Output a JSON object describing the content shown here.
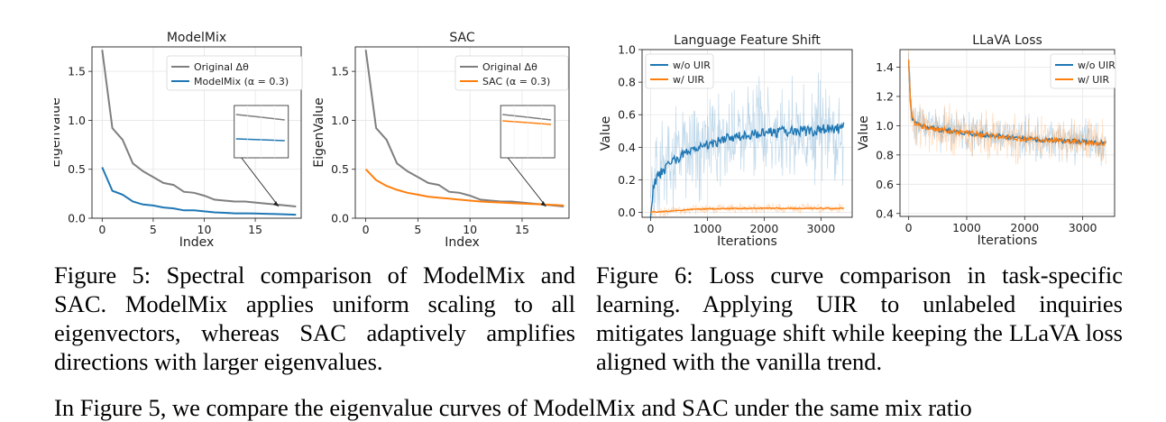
{
  "figure5": {
    "caption_label": "Figure 5:",
    "caption_text": "Spectral comparison of ModelMix and SAC. ModelMix applies uniform scaling to all eigenvectors, whereas SAC adaptively amplifies directions with larger eigenvalues."
  },
  "figure6": {
    "caption_label": "Figure 6:",
    "caption_text": "Loss curve comparison in task-specific learning. Applying UIR to unlabeled inquiries mitigates language shift while keeping the LLaVA loss aligned with the vanilla trend."
  },
  "body_text": "In Figure 5, we compare the eigenvalue curves of ModelMix and SAC under the same mix ratio",
  "colors": {
    "blue": "#1f77b4",
    "orange": "#ff7f0e",
    "gray": "#7f7f7f"
  },
  "chart_data": [
    {
      "type": "line",
      "title": "ModelMix",
      "xlabel": "Index",
      "ylabel": "EigenValue",
      "xlim": [
        -1,
        19.5
      ],
      "ylim": [
        0,
        1.75
      ],
      "xticks": [
        0,
        5,
        10,
        15
      ],
      "yticks": [
        0.0,
        0.5,
        1.0,
        1.5
      ],
      "grid": true,
      "legend": "upper right",
      "inset_zoom": true,
      "series": [
        {
          "name": "Original Δθ",
          "color": "#7f7f7f",
          "x": [
            0,
            1,
            2,
            3,
            4,
            5,
            6,
            7,
            8,
            9,
            10,
            11,
            12,
            13,
            14,
            15,
            16,
            17,
            18,
            19
          ],
          "values": [
            1.72,
            0.92,
            0.8,
            0.56,
            0.48,
            0.42,
            0.36,
            0.34,
            0.27,
            0.26,
            0.23,
            0.19,
            0.18,
            0.17,
            0.17,
            0.16,
            0.15,
            0.14,
            0.13,
            0.12
          ]
        },
        {
          "name": "ModelMix (α = 0.3)",
          "color": "#1f77b4",
          "x": [
            0,
            1,
            2,
            3,
            4,
            5,
            6,
            7,
            8,
            9,
            10,
            11,
            12,
            13,
            14,
            15,
            16,
            17,
            18,
            19
          ],
          "values": [
            0.52,
            0.28,
            0.24,
            0.17,
            0.14,
            0.13,
            0.11,
            0.1,
            0.08,
            0.08,
            0.07,
            0.06,
            0.055,
            0.05,
            0.05,
            0.048,
            0.045,
            0.042,
            0.04,
            0.036
          ]
        }
      ]
    },
    {
      "type": "line",
      "title": "SAC",
      "xlabel": "Index",
      "ylabel": "EigenValue",
      "xlim": [
        -1,
        19.5
      ],
      "ylim": [
        0,
        1.75
      ],
      "xticks": [
        0,
        5,
        10,
        15
      ],
      "yticks": [
        0.0,
        0.5,
        1.0,
        1.5
      ],
      "grid": true,
      "legend": "upper right",
      "inset_zoom": true,
      "series": [
        {
          "name": "Original Δθ",
          "color": "#7f7f7f",
          "x": [
            0,
            1,
            2,
            3,
            4,
            5,
            6,
            7,
            8,
            9,
            10,
            11,
            12,
            13,
            14,
            15,
            16,
            17,
            18,
            19
          ],
          "values": [
            1.72,
            0.92,
            0.8,
            0.56,
            0.48,
            0.42,
            0.36,
            0.34,
            0.27,
            0.26,
            0.23,
            0.19,
            0.18,
            0.17,
            0.17,
            0.16,
            0.15,
            0.14,
            0.13,
            0.12
          ]
        },
        {
          "name": "SAC (α = 0.3)",
          "color": "#ff7f0e",
          "x": [
            0,
            1,
            2,
            3,
            4,
            5,
            6,
            7,
            8,
            9,
            10,
            11,
            12,
            13,
            14,
            15,
            16,
            17,
            18,
            19
          ],
          "values": [
            0.5,
            0.39,
            0.33,
            0.29,
            0.26,
            0.24,
            0.22,
            0.21,
            0.2,
            0.19,
            0.18,
            0.17,
            0.165,
            0.16,
            0.155,
            0.15,
            0.145,
            0.14,
            0.135,
            0.13
          ]
        }
      ]
    },
    {
      "type": "line",
      "title": "Language Feature Shift",
      "xlabel": "Iterations",
      "ylabel": "Value",
      "xlim": [
        -150,
        3550
      ],
      "ylim": [
        -0.03,
        1.0
      ],
      "xticks": [
        0,
        1000,
        2000,
        3000
      ],
      "yticks": [
        0.0,
        0.2,
        0.4,
        0.6,
        0.8,
        1.0
      ],
      "grid": true,
      "legend": "upper left",
      "series": [
        {
          "name": "w/o UIR",
          "color": "#1f77b4",
          "x": [
            0,
            50,
            100,
            200,
            300,
            400,
            500,
            600,
            700,
            800,
            900,
            1000,
            1200,
            1400,
            1600,
            1800,
            2000,
            2200,
            2400,
            2600,
            2800,
            3000,
            3200,
            3400
          ],
          "values": [
            0.0,
            0.16,
            0.2,
            0.25,
            0.28,
            0.31,
            0.33,
            0.36,
            0.38,
            0.4,
            0.41,
            0.42,
            0.44,
            0.46,
            0.47,
            0.48,
            0.49,
            0.49,
            0.5,
            0.5,
            0.5,
            0.51,
            0.51,
            0.52
          ],
          "band": 0.3
        },
        {
          "name": "w/ UIR",
          "color": "#ff7f0e",
          "x": [
            0,
            200,
            400,
            600,
            800,
            1000,
            1500,
            2000,
            2500,
            3000,
            3400
          ],
          "values": [
            0.0,
            0.005,
            0.01,
            0.015,
            0.02,
            0.022,
            0.025,
            0.025,
            0.025,
            0.025,
            0.025
          ],
          "band": 0.03
        }
      ]
    },
    {
      "type": "line",
      "title": "LLaVA Loss",
      "xlabel": "Iterations",
      "ylabel": "Value",
      "xlim": [
        -150,
        3550
      ],
      "ylim": [
        0.38,
        1.52
      ],
      "xticks": [
        0,
        1000,
        2000,
        3000
      ],
      "yticks": [
        0.4,
        0.6,
        0.8,
        1.0,
        1.2,
        1.4
      ],
      "grid": true,
      "legend": "upper right",
      "series": [
        {
          "name": "w/o UIR",
          "color": "#1f77b4",
          "x": [
            0,
            30,
            60,
            100,
            200,
            400,
            600,
            800,
            1000,
            1500,
            2000,
            2500,
            3000,
            3400
          ],
          "values": [
            1.45,
            1.15,
            1.05,
            1.02,
            1.0,
            0.98,
            0.97,
            0.96,
            0.95,
            0.93,
            0.91,
            0.9,
            0.89,
            0.88
          ],
          "band": 0.14
        },
        {
          "name": "w/ UIR",
          "color": "#ff7f0e",
          "x": [
            0,
            30,
            60,
            100,
            200,
            400,
            600,
            800,
            1000,
            1500,
            2000,
            2500,
            3000,
            3400
          ],
          "values": [
            1.47,
            1.15,
            1.05,
            1.02,
            1.0,
            0.98,
            0.97,
            0.96,
            0.95,
            0.93,
            0.91,
            0.9,
            0.89,
            0.88
          ],
          "band": 0.16
        }
      ]
    }
  ]
}
